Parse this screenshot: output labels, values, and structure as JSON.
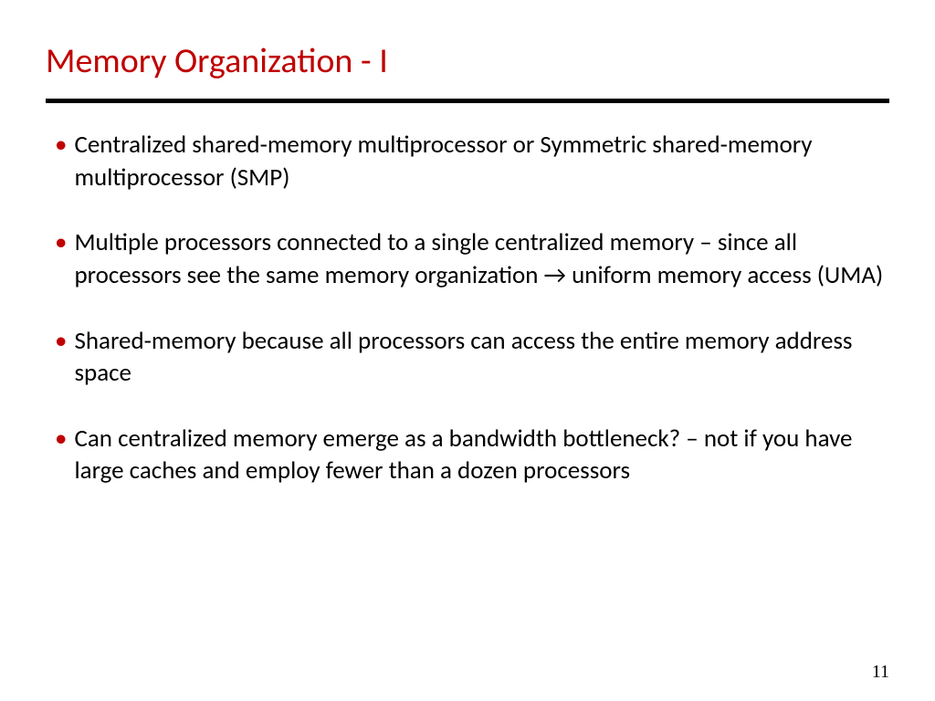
{
  "colors": {
    "title_color": "#c00000",
    "bullet_color": "#c00000",
    "text_color": "#000000",
    "divider_color": "#000000",
    "background": "#ffffff"
  },
  "typography": {
    "title_fontsize": 38,
    "body_fontsize": 27,
    "pagenum_fontsize": 20
  },
  "slide": {
    "title": "Memory Organization - I",
    "bullets": [
      {
        "text": "Centralized shared-memory multiprocessor   or Symmetric shared-memory multiprocessor (SMP)"
      },
      {
        "text": "Multiple processors connected to a single centralized memory – since all processors see the same memory organization → uniform memory access (UMA)"
      },
      {
        "text": "Shared-memory because all processors can access the entire memory address space"
      },
      {
        "text": "Can centralized memory emerge as a bandwidth bottleneck? – not if you have large caches and employ fewer than a dozen processors"
      }
    ],
    "page_number": "11"
  }
}
